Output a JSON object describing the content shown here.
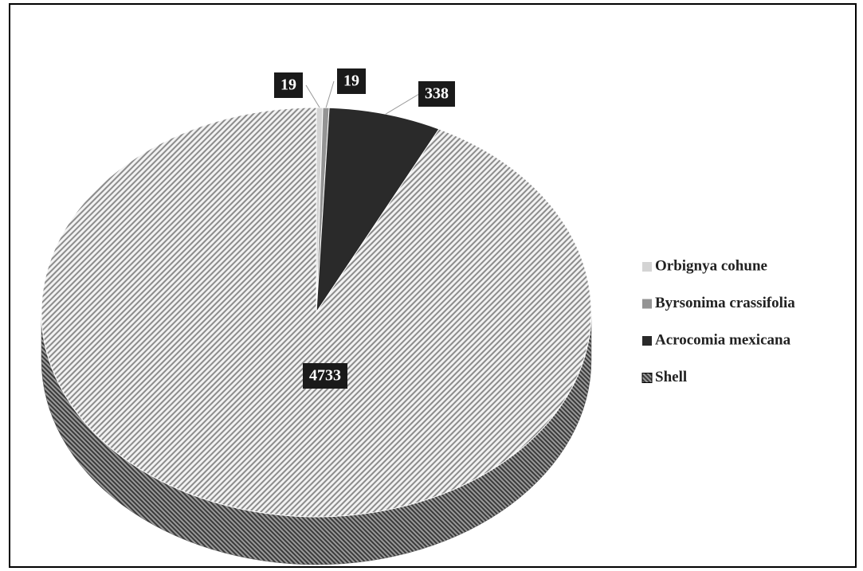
{
  "chart_data": {
    "type": "pie",
    "categories": [
      "Orbignya cohune",
      "Byrsonima crassifolia",
      "Acrocomia mexicana",
      "Shell"
    ],
    "values": [
      19,
      19,
      338,
      4733
    ],
    "colors": [
      "#d4d4d4",
      "#949494",
      "#2a2a2a",
      "#a8a8a8"
    ],
    "hatch": [
      false,
      false,
      false,
      true
    ],
    "legend": "right"
  }
}
